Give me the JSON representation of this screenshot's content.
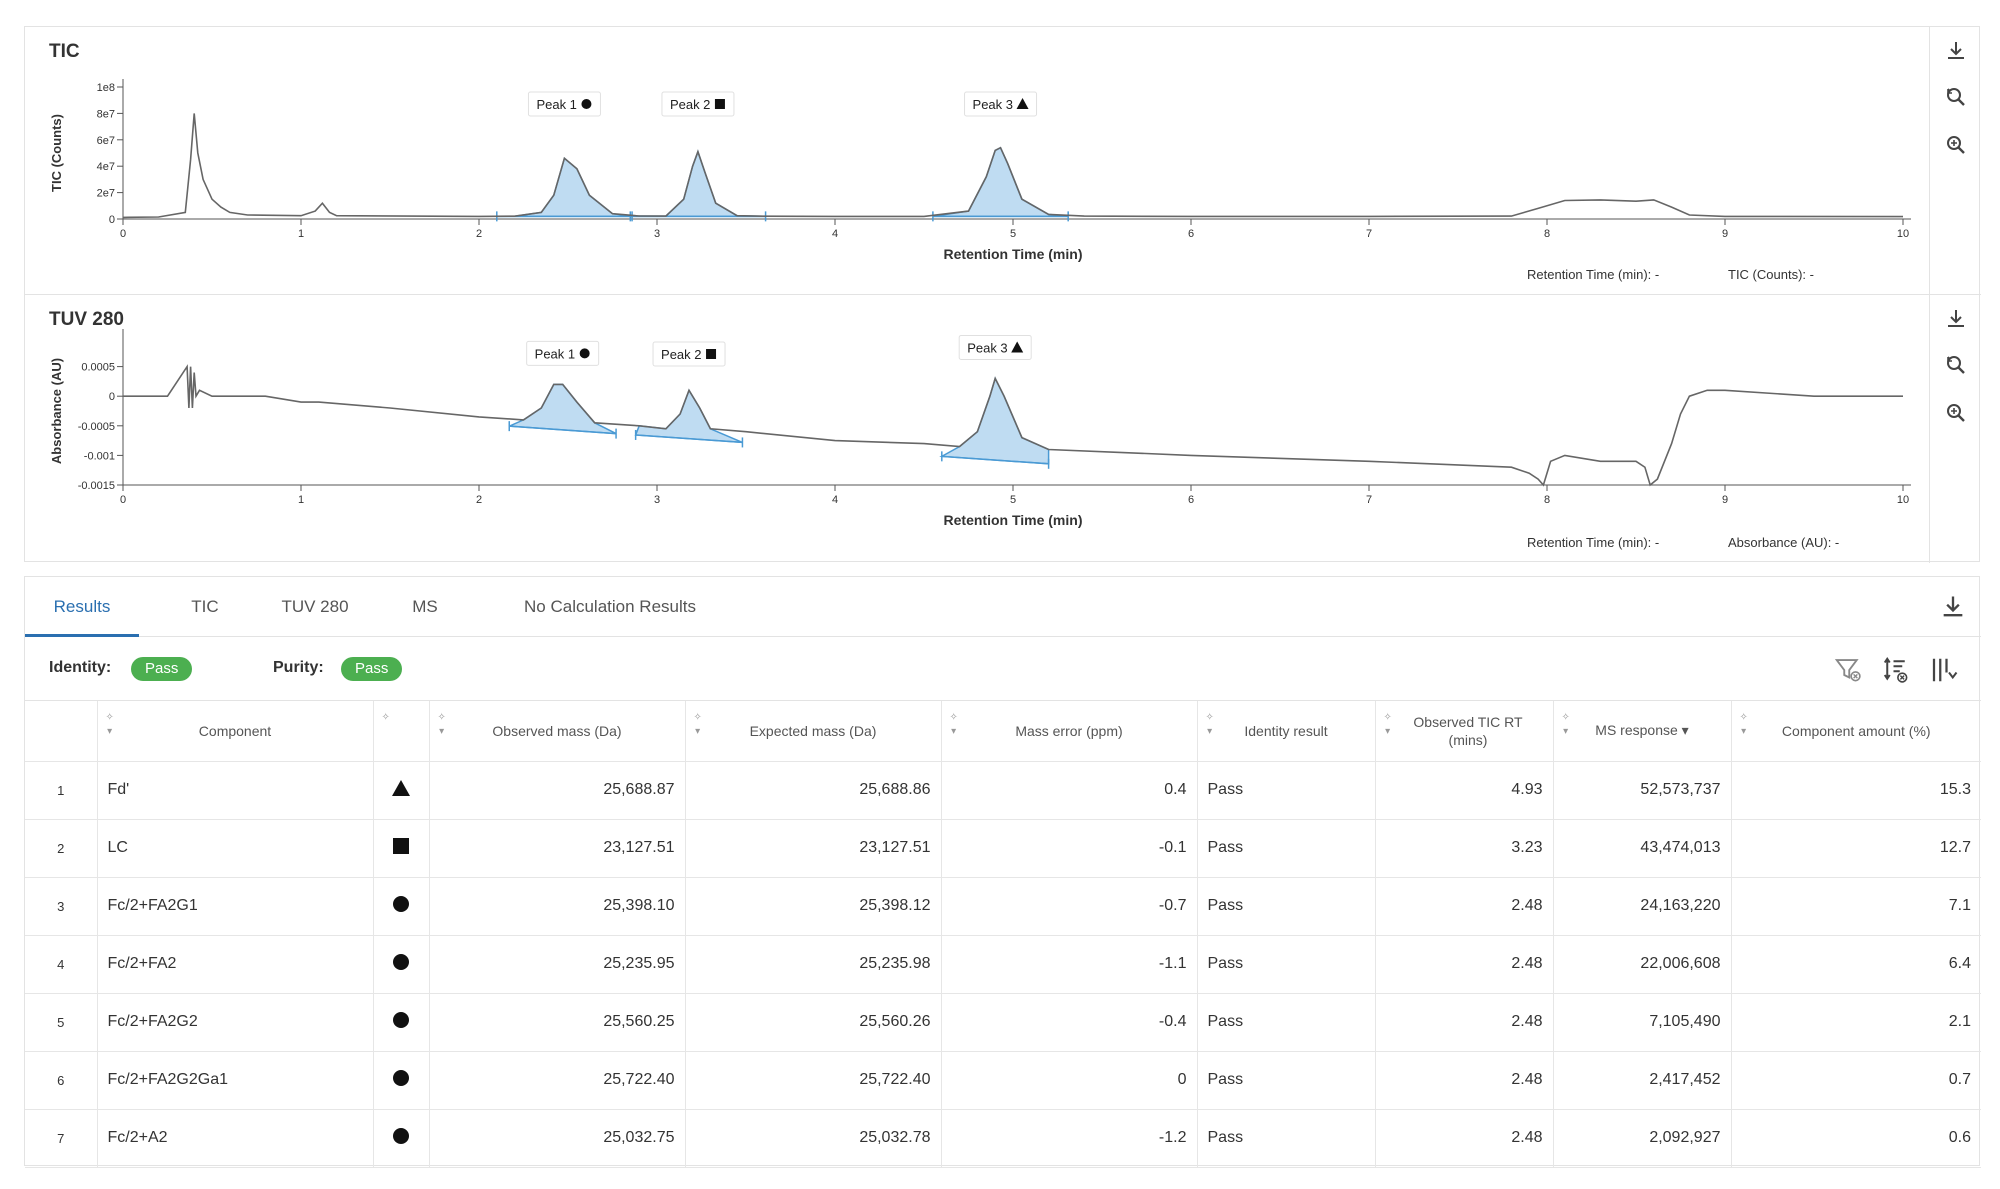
{
  "tic": {
    "title": "TIC",
    "toolbar": {
      "download_icon": "download-icon",
      "reset_zoom_icon": "reset-zoom-icon",
      "zoom_icon": "zoom-in-icon"
    },
    "readout": {
      "rt_label": "Retention Time (min): -",
      "value_label": "TIC (Counts): -"
    }
  },
  "tuv": {
    "title": "TUV 280",
    "toolbar": {
      "download_icon": "download-icon",
      "reset_zoom_icon": "reset-zoom-icon",
      "zoom_icon": "zoom-in-icon"
    },
    "readout": {
      "rt_label": "Retention Time (min): -",
      "value_label": "Absorbance (AU): -"
    }
  },
  "chart_data": [
    {
      "type": "line",
      "title": "TIC",
      "xlabel": "Retention Time (min)",
      "ylabel": "TIC (Counts)",
      "xlim": [
        0,
        10
      ],
      "ylim": [
        0,
        100000000
      ],
      "x_ticks": [
        "0",
        "1",
        "2",
        "3",
        "4",
        "5",
        "6",
        "7",
        "8",
        "9",
        "10"
      ],
      "y_ticks": [
        "0",
        "2e7",
        "4e7",
        "6e7",
        "8e7",
        "1e8"
      ],
      "grid": false,
      "series": [
        {
          "x": [
            0,
            0.2,
            0.35,
            0.38,
            0.4,
            0.42,
            0.45,
            0.5,
            0.55,
            0.6,
            0.7,
            1.0,
            1.08,
            1.12,
            1.16,
            1.2,
            1.6,
            2.0,
            2.2,
            2.35,
            2.42,
            2.48,
            2.55,
            2.62,
            2.75,
            2.9,
            3.05,
            3.15,
            3.2,
            3.23,
            3.27,
            3.33,
            3.45,
            3.6,
            4.0,
            4.5,
            4.75,
            4.85,
            4.9,
            4.93,
            4.97,
            5.05,
            5.2,
            5.4,
            6.0,
            7.0,
            7.8,
            7.95,
            8.1,
            8.3,
            8.5,
            8.6,
            8.7,
            8.8,
            9.0,
            10.0
          ],
          "y": [
            1200000,
            1500000,
            5000000,
            45000000,
            80000000,
            50000000,
            30000000,
            15000000,
            9000000,
            5000000,
            3000000,
            2500000,
            6000000,
            12000000,
            5000000,
            2500000,
            2200000,
            2000000,
            2100000,
            5000000,
            18000000,
            46000000,
            38000000,
            18000000,
            4000000,
            2300000,
            2200000,
            15000000,
            40000000,
            51000000,
            35000000,
            12000000,
            2500000,
            2100000,
            2000000,
            2000000,
            6000000,
            32000000,
            52000000,
            54000000,
            42000000,
            15000000,
            3500000,
            2200000,
            2000000,
            2000000,
            2200000,
            8000000,
            14000000,
            14500000,
            13500000,
            14500000,
            9000000,
            3000000,
            2000000,
            1800000
          ]
        }
      ],
      "peak_labels": [
        {
          "label": "Peak 1",
          "shape": "circle",
          "x": 2.48
        },
        {
          "label": "Peak 2",
          "shape": "square",
          "x": 3.23
        },
        {
          "label": "Peak 3",
          "shape": "triangle",
          "x": 4.93
        }
      ]
    },
    {
      "type": "line",
      "title": "TUV 280",
      "xlabel": "Retention Time (min)",
      "ylabel": "Absorbance (AU)",
      "xlim": [
        0,
        10
      ],
      "ylim": [
        -0.0015,
        0.001
      ],
      "x_ticks": [
        "0",
        "1",
        "2",
        "3",
        "4",
        "5",
        "6",
        "7",
        "8",
        "9",
        "10"
      ],
      "y_ticks": [
        "-0.0015",
        "-0.001",
        "-0.0005",
        "0",
        "0.0005"
      ],
      "grid": false,
      "series": [
        {
          "x": [
            0,
            0.25,
            0.36,
            0.37,
            0.38,
            0.39,
            0.4,
            0.41,
            0.43,
            0.5,
            0.6,
            0.7,
            0.8,
            1.0,
            1.05,
            1.1,
            1.5,
            2.0,
            2.25,
            2.35,
            2.42,
            2.47,
            2.55,
            2.65,
            2.9,
            3.05,
            3.13,
            3.18,
            3.24,
            3.3,
            3.5,
            4.0,
            4.5,
            4.7,
            4.8,
            4.87,
            4.9,
            4.95,
            5.05,
            5.2,
            5.6,
            6.0,
            7.0,
            7.8,
            7.9,
            7.95,
            7.98,
            8.02,
            8.1,
            8.3,
            8.5,
            8.55,
            8.58,
            8.62,
            8.7,
            8.75,
            8.8,
            8.9,
            9.0,
            9.5,
            10.0
          ],
          "y": [
            0.0,
            0.0,
            0.0005,
            -0.0002,
            0.0005,
            -0.0002,
            0.0004,
            0.0,
            0.0001,
            0.0,
            0.0,
            0.0,
            0.0,
            -0.0001,
            -0.0001,
            -0.0001,
            -0.0002,
            -0.00035,
            -0.0004,
            -0.0002,
            0.0002,
            0.0002,
            -0.0001,
            -0.00045,
            -0.0005,
            -0.00055,
            -0.0003,
            0.0001,
            -0.0002,
            -0.00055,
            -0.0006,
            -0.00075,
            -0.0008,
            -0.00085,
            -0.0006,
            0.0,
            0.0003,
            0.0,
            -0.0007,
            -0.0009,
            -0.00095,
            -0.001,
            -0.0011,
            -0.0012,
            -0.0013,
            -0.0014,
            -0.0015,
            -0.0011,
            -0.001,
            -0.0011,
            -0.0011,
            -0.0012,
            -0.0015,
            -0.0014,
            -0.0008,
            -0.0003,
            0.0,
            0.0001,
            0.0001,
            0.0,
            0.0
          ]
        }
      ],
      "peak_labels": [
        {
          "label": "Peak 1",
          "shape": "circle",
          "x": 2.47
        },
        {
          "label": "Peak 2",
          "shape": "square",
          "x": 3.18
        },
        {
          "label": "Peak 3",
          "shape": "triangle",
          "x": 4.9
        }
      ]
    }
  ],
  "results": {
    "tabs": [
      "Results",
      "TIC",
      "TUV 280",
      "MS",
      "No Calculation Results"
    ],
    "active_tab": 0,
    "download_icon": "download-icon",
    "identity_label": "Identity:",
    "identity_value": "Pass",
    "purity_label": "Purity:",
    "purity_value": "Pass",
    "pass_color": "#4caf50",
    "tools": [
      "filter-clear-icon",
      "sort-clear-icon",
      "columns-icon"
    ],
    "columns": [
      "",
      "Component",
      "",
      "Observed mass (Da)",
      "Expected mass (Da)",
      "Mass error (ppm)",
      "Identity result",
      "Observed TIC RT (mins)",
      "MS response ▾",
      "Component amount (%)"
    ],
    "rows": [
      {
        "idx": "1",
        "component": "Fd'",
        "shape": "triangle",
        "observed": "25,688.87",
        "expected": "25,688.86",
        "error": "0.4",
        "identity": "Pass",
        "rt": "4.93",
        "ms": "52,573,737",
        "amount": "15.3"
      },
      {
        "idx": "2",
        "component": "LC",
        "shape": "square",
        "observed": "23,127.51",
        "expected": "23,127.51",
        "error": "-0.1",
        "identity": "Pass",
        "rt": "3.23",
        "ms": "43,474,013",
        "amount": "12.7"
      },
      {
        "idx": "3",
        "component": "Fc/2+FA2G1",
        "shape": "circle",
        "observed": "25,398.10",
        "expected": "25,398.12",
        "error": "-0.7",
        "identity": "Pass",
        "rt": "2.48",
        "ms": "24,163,220",
        "amount": "7.1"
      },
      {
        "idx": "4",
        "component": "Fc/2+FA2",
        "shape": "circle",
        "observed": "25,235.95",
        "expected": "25,235.98",
        "error": "-1.1",
        "identity": "Pass",
        "rt": "2.48",
        "ms": "22,006,608",
        "amount": "6.4"
      },
      {
        "idx": "5",
        "component": "Fc/2+FA2G2",
        "shape": "circle",
        "observed": "25,560.25",
        "expected": "25,560.26",
        "error": "-0.4",
        "identity": "Pass",
        "rt": "2.48",
        "ms": "7,105,490",
        "amount": "2.1"
      },
      {
        "idx": "6",
        "component": "Fc/2+FA2G2Ga1",
        "shape": "circle",
        "observed": "25,722.40",
        "expected": "25,722.40",
        "error": "0",
        "identity": "Pass",
        "rt": "2.48",
        "ms": "2,417,452",
        "amount": "0.7"
      },
      {
        "idx": "7",
        "component": "Fc/2+A2",
        "shape": "circle",
        "observed": "25,032.75",
        "expected": "25,032.78",
        "error": "-1.2",
        "identity": "Pass",
        "rt": "2.48",
        "ms": "2,092,927",
        "amount": "0.6"
      }
    ]
  },
  "colors": {
    "trace": "#666666",
    "peak_fill": "#bfdcf2",
    "peak_line": "#4a9ad4",
    "accent": "#2a6fb0"
  }
}
